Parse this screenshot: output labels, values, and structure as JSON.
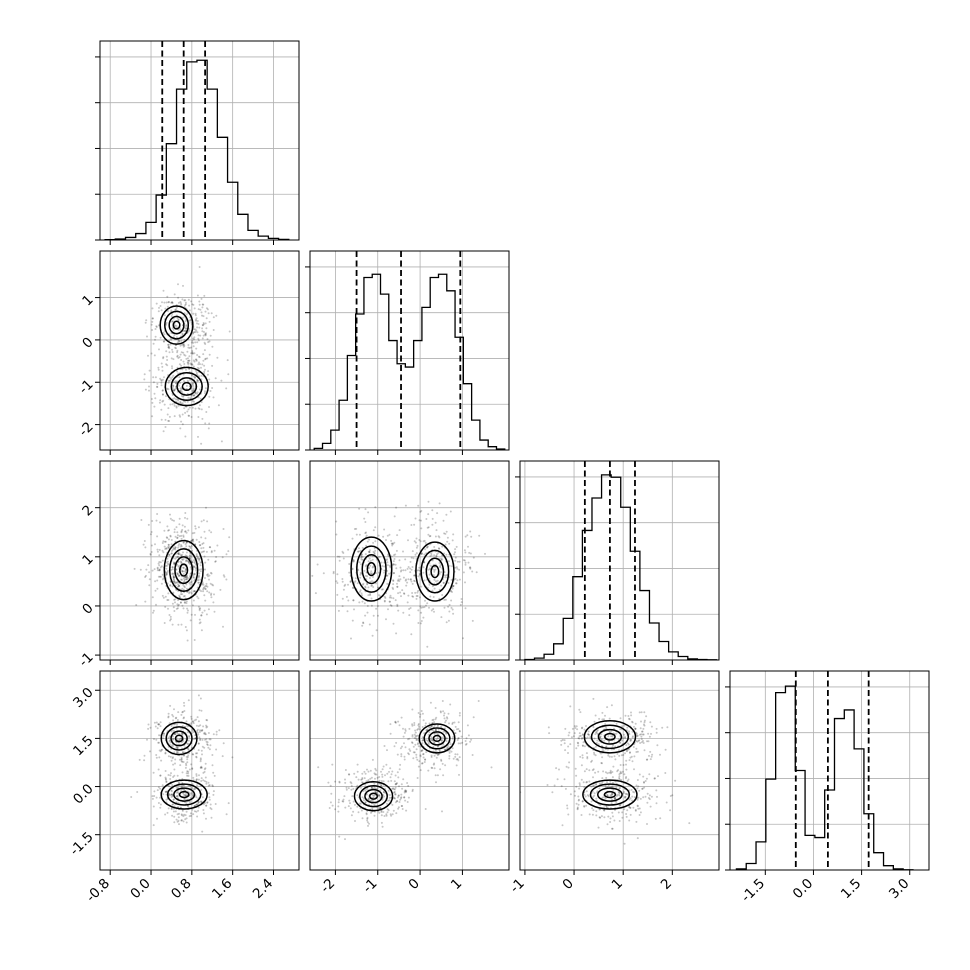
{
  "chart_data": {
    "type": "corner",
    "parameters": 4,
    "grid": true,
    "params": [
      {
        "range": [
          -1.0,
          2.9
        ],
        "ticks": [
          "-0.8",
          "0.0",
          "0.8",
          "1.6",
          "2.4"
        ],
        "tick_values": [
          -0.8,
          0.0,
          0.8,
          1.6,
          2.4
        ],
        "hist": {
          "edges_range": [
            -0.9,
            2.7
          ],
          "bins": 18,
          "counts": [
            1,
            3,
            8,
            20,
            55,
            140,
            300,
            470,
            555,
            560,
            470,
            320,
            180,
            80,
            30,
            12,
            5,
            2
          ],
          "ymax": 620
        },
        "quantiles": [
          0.22,
          0.64,
          1.06
        ]
      },
      {
        "range": [
          -2.6,
          2.1
        ],
        "ticks": [
          "-2",
          "-1",
          "0",
          "1"
        ],
        "tick_values": [
          -2,
          -1,
          0,
          1
        ],
        "hist": {
          "edges_range": [
            -2.5,
            2.0
          ],
          "bins": 23,
          "counts": [
            5,
            20,
            60,
            150,
            285,
            410,
            520,
            530,
            470,
            330,
            260,
            250,
            330,
            430,
            520,
            530,
            480,
            340,
            200,
            90,
            30,
            10,
            3
          ],
          "ymax": 600
        },
        "quantiles": [
          -1.5,
          -0.45,
          0.95
        ]
      },
      {
        "range": [
          -1.1,
          2.95
        ],
        "ticks": [
          "-1",
          "0",
          "1",
          "2"
        ],
        "tick_values": [
          -1,
          0,
          1,
          2
        ],
        "hist": {
          "edges_range": [
            -1.0,
            2.9
          ],
          "bins": 20,
          "counts": [
            2,
            8,
            25,
            70,
            180,
            360,
            560,
            700,
            800,
            790,
            660,
            470,
            300,
            160,
            80,
            35,
            15,
            5,
            2,
            1
          ],
          "ymax": 860
        },
        "quantiles": [
          0.22,
          0.73,
          1.24
        ]
      },
      {
        "range": [
          -2.6,
          3.6
        ],
        "ticks": [
          "-1.5",
          "0.0",
          "1.5",
          "3.0"
        ],
        "tick_values": [
          -1.5,
          0.0,
          1.5,
          3.0
        ],
        "hist": {
          "edges_range": [
            -2.4,
            3.1
          ],
          "bins": 18,
          "counts": [
            5,
            30,
            130,
            420,
            820,
            850,
            460,
            160,
            150,
            370,
            700,
            740,
            560,
            260,
            80,
            20,
            5,
            1
          ],
          "ymax": 920
        },
        "quantiles": [
          -0.55,
          0.45,
          1.72
        ]
      }
    ]
  }
}
